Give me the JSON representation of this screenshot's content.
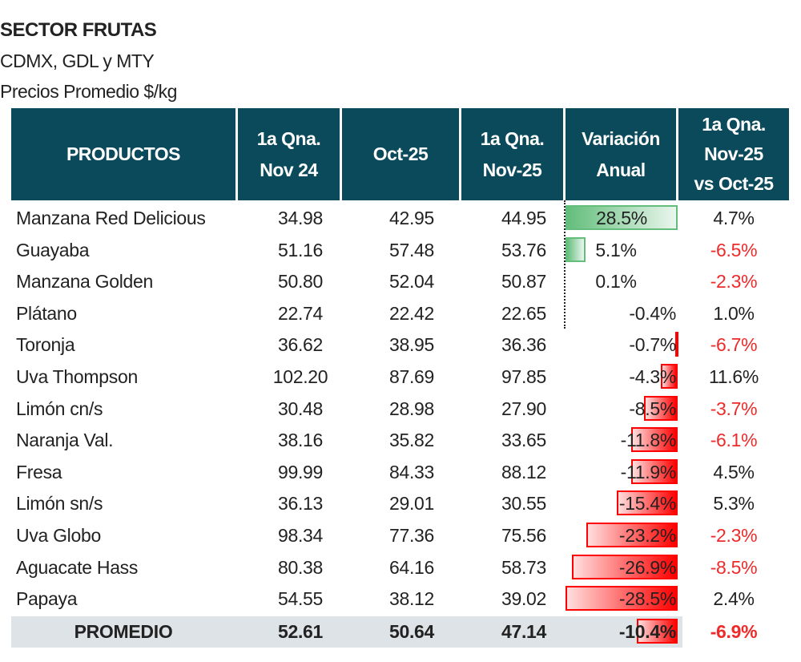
{
  "title": "SECTOR FRUTAS",
  "subtitle1": "CDMX, GDL y MTY",
  "subtitle2": "Precios Promedio $/kg",
  "headers": {
    "productos": "PRODUCTOS",
    "col1": [
      "1a Qna.",
      "Nov 24"
    ],
    "col2": "Oct-25",
    "col3": [
      "1a Qna.",
      "Nov-25"
    ],
    "col4": [
      "Variación",
      "Anual"
    ],
    "col5": [
      "1a Qna.",
      "Nov-25",
      "vs Oct-25"
    ]
  },
  "colors": {
    "header_bg": "#0b4a5b",
    "positive_bar": "#63be7b",
    "negative_bar": "#ff0000",
    "negative_text": "#ee2a2a",
    "average_row_bg": "#dde3e6"
  },
  "rows": [
    {
      "producto": "Manzana Red Delicious",
      "nov24": "34.98",
      "oct25": "42.95",
      "nov25": "44.95",
      "var_anual": "28.5%",
      "var_anual_value": 28.5,
      "var_mensual": "4.7%",
      "var_mensual_neg": false
    },
    {
      "producto": "Guayaba",
      "nov24": "51.16",
      "oct25": "57.48",
      "nov25": "53.76",
      "var_anual": "5.1%",
      "var_anual_value": 5.1,
      "var_mensual": "-6.5%",
      "var_mensual_neg": true
    },
    {
      "producto": "Manzana Golden",
      "nov24": "50.80",
      "oct25": "52.04",
      "nov25": "50.87",
      "var_anual": "0.1%",
      "var_anual_value": 0.1,
      "var_mensual": "-2.3%",
      "var_mensual_neg": true
    },
    {
      "producto": "Plátano",
      "nov24": "22.74",
      "oct25": "22.42",
      "nov25": "22.65",
      "var_anual": "-0.4%",
      "var_anual_value": -0.4,
      "var_mensual": "1.0%",
      "var_mensual_neg": false
    },
    {
      "producto": "Toronja",
      "nov24": "36.62",
      "oct25": "38.95",
      "nov25": "36.36",
      "var_anual": "-0.7%",
      "var_anual_value": -0.7,
      "var_mensual": "-6.7%",
      "var_mensual_neg": true
    },
    {
      "producto": "Uva Thompson",
      "nov24": "102.20",
      "oct25": "87.69",
      "nov25": "97.85",
      "var_anual": "-4.3%",
      "var_anual_value": -4.3,
      "var_mensual": "11.6%",
      "var_mensual_neg": false
    },
    {
      "producto": "Limón cn/s",
      "nov24": "30.48",
      "oct25": "28.98",
      "nov25": "27.90",
      "var_anual": "-8.5%",
      "var_anual_value": -8.5,
      "var_mensual": "-3.7%",
      "var_mensual_neg": true
    },
    {
      "producto": "Naranja Val.",
      "nov24": "38.16",
      "oct25": "35.82",
      "nov25": "33.65",
      "var_anual": "-11.8%",
      "var_anual_value": -11.8,
      "var_mensual": "-6.1%",
      "var_mensual_neg": true
    },
    {
      "producto": "Fresa",
      "nov24": "99.99",
      "oct25": "84.33",
      "nov25": "88.12",
      "var_anual": "-11.9%",
      "var_anual_value": -11.9,
      "var_mensual": "4.5%",
      "var_mensual_neg": false
    },
    {
      "producto": "Limón sn/s",
      "nov24": "36.13",
      "oct25": "29.01",
      "nov25": "30.55",
      "var_anual": "-15.4%",
      "var_anual_value": -15.4,
      "var_mensual": "5.3%",
      "var_mensual_neg": false
    },
    {
      "producto": "Uva Globo",
      "nov24": "98.34",
      "oct25": "77.36",
      "nov25": "75.56",
      "var_anual": "-23.2%",
      "var_anual_value": -23.2,
      "var_mensual": "-2.3%",
      "var_mensual_neg": true
    },
    {
      "producto": "Aguacate Hass",
      "nov24": "80.38",
      "oct25": "64.16",
      "nov25": "58.73",
      "var_anual": "-26.9%",
      "var_anual_value": -26.9,
      "var_mensual": "-8.5%",
      "var_mensual_neg": true
    },
    {
      "producto": "Papaya",
      "nov24": "54.55",
      "oct25": "38.12",
      "nov25": "39.02",
      "var_anual": "-28.5%",
      "var_anual_value": -28.5,
      "var_mensual": "2.4%",
      "var_mensual_neg": false
    }
  ],
  "promedio": {
    "producto": "PROMEDIO",
    "nov24": "52.61",
    "oct25": "50.64",
    "nov25": "47.14",
    "var_anual": "-10.4%",
    "var_anual_value": -10.4,
    "var_mensual": "-6.9%",
    "var_mensual_neg": true
  }
}
